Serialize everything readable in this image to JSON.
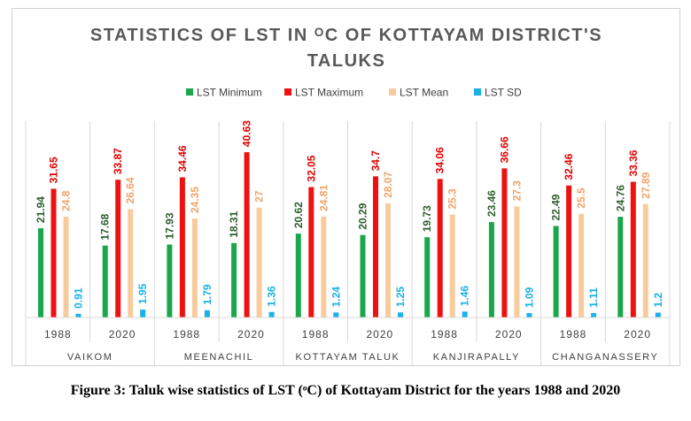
{
  "caption": "Figure 3: Taluk wise statistics of LST (ᵒC) of Kottayam District for the years 1988 and 2020",
  "chart_data": {
    "type": "bar",
    "title_lines": [
      "STATISTICS OF LST IN ᴼC OF KOTTAYAM DISTRICT'S",
      "TALUKS"
    ],
    "groups": [
      "VAIKOM",
      "MEENACHIL",
      "KOTTAYAM TALUK",
      "KANJIRAPALLY",
      "CHANGANASSERY"
    ],
    "years": [
      "1988",
      "2020"
    ],
    "categories": [
      "VAIKOM 1988",
      "VAIKOM 2020",
      "MEENACHIL 1988",
      "MEENACHIL 2020",
      "KOTTAYAM TALUK 1988",
      "KOTTAYAM TALUK 2020",
      "KANJIRAPALLY 1988",
      "KANJIRAPALLY 2020",
      "CHANGANASSERY 1988",
      "CHANGANASSERY 2020"
    ],
    "series": [
      {
        "name": "LST Minimum",
        "color": "#1aa64a",
        "label_color": "#2e5e2e",
        "values": [
          21.94,
          17.68,
          17.93,
          18.31,
          20.62,
          20.29,
          19.73,
          23.46,
          22.49,
          24.76
        ]
      },
      {
        "name": "LST Maximum",
        "color": "#ee1111",
        "label_color": "#e00000",
        "values": [
          31.65,
          33.87,
          34.46,
          40.63,
          32.05,
          34.7,
          34.06,
          36.66,
          32.46,
          33.36
        ]
      },
      {
        "name": "LST Mean",
        "color": "#f8cb9c",
        "label_color": "#f0a46a",
        "values": [
          24.8,
          26.64,
          24.35,
          27,
          24.81,
          28.07,
          25.3,
          27.3,
          25.5,
          27.89
        ]
      },
      {
        "name": "LST SD",
        "color": "#1ab0e8",
        "label_color": "#1ab0e8",
        "values": [
          0.91,
          1.95,
          1.79,
          1.36,
          1.24,
          1.25,
          1.46,
          1.09,
          1.11,
          1.2
        ]
      }
    ],
    "ylim": [
      0,
      45
    ],
    "legend_position": "top",
    "grid": false
  }
}
